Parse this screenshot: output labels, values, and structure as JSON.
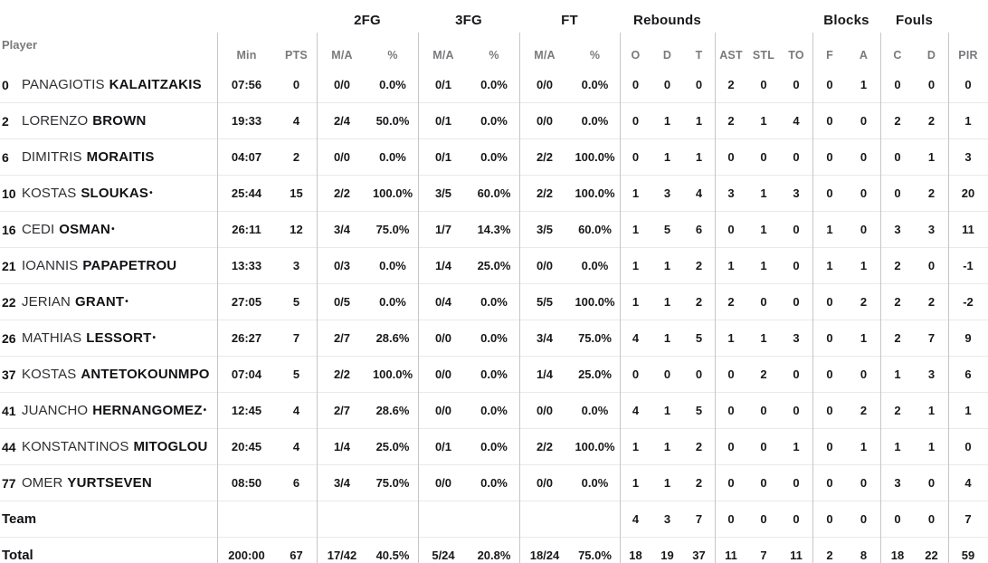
{
  "colors": {
    "background": "#ffffff",
    "text": "#18181c",
    "muted_header": "#7a7a7e",
    "row_line": "#e9e9ec",
    "column_line": "#c6c6ca"
  },
  "table": {
    "player_header": "Player",
    "group_headers": {
      "fg2": "2FG",
      "fg3": "3FG",
      "ft": "FT",
      "rebounds": "Rebounds",
      "blocks": "Blocks",
      "fouls": "Fouls"
    },
    "stat_headers": [
      "Min",
      "PTS",
      "M/A",
      "%",
      "M/A",
      "%",
      "M/A",
      "%",
      "O",
      "D",
      "T",
      "AST",
      "STL",
      "TO",
      "F",
      "A",
      "C",
      "D",
      "PIR"
    ],
    "starter_marker": "•",
    "rows": [
      {
        "kind": "player",
        "number": "0",
        "first": "PANAGIOTIS",
        "last": "KALAITZAKIS",
        "starter": false,
        "stats": [
          "07:56",
          "0",
          "0/0",
          "0.0%",
          "0/1",
          "0.0%",
          "0/0",
          "0.0%",
          "0",
          "0",
          "0",
          "2",
          "0",
          "0",
          "0",
          "1",
          "0",
          "0",
          "0"
        ]
      },
      {
        "kind": "player",
        "number": "2",
        "first": "LORENZO",
        "last": "BROWN",
        "starter": false,
        "stats": [
          "19:33",
          "4",
          "2/4",
          "50.0%",
          "0/1",
          "0.0%",
          "0/0",
          "0.0%",
          "0",
          "1",
          "1",
          "2",
          "1",
          "4",
          "0",
          "0",
          "2",
          "2",
          "1"
        ]
      },
      {
        "kind": "player",
        "number": "6",
        "first": "DIMITRIS",
        "last": "MORAITIS",
        "starter": false,
        "stats": [
          "04:07",
          "2",
          "0/0",
          "0.0%",
          "0/1",
          "0.0%",
          "2/2",
          "100.0%",
          "0",
          "1",
          "1",
          "0",
          "0",
          "0",
          "0",
          "0",
          "0",
          "1",
          "3"
        ]
      },
      {
        "kind": "player",
        "number": "10",
        "first": "KOSTAS",
        "last": "SLOUKAS",
        "starter": true,
        "stats": [
          "25:44",
          "15",
          "2/2",
          "100.0%",
          "3/5",
          "60.0%",
          "2/2",
          "100.0%",
          "1",
          "3",
          "4",
          "3",
          "1",
          "3",
          "0",
          "0",
          "0",
          "2",
          "20"
        ]
      },
      {
        "kind": "player",
        "number": "16",
        "first": "CEDI",
        "last": "OSMAN",
        "starter": true,
        "stats": [
          "26:11",
          "12",
          "3/4",
          "75.0%",
          "1/7",
          "14.3%",
          "3/5",
          "60.0%",
          "1",
          "5",
          "6",
          "0",
          "1",
          "0",
          "1",
          "0",
          "3",
          "3",
          "11"
        ]
      },
      {
        "kind": "player",
        "number": "21",
        "first": "IOANNIS",
        "last": "PAPAPETROU",
        "starter": false,
        "stats": [
          "13:33",
          "3",
          "0/3",
          "0.0%",
          "1/4",
          "25.0%",
          "0/0",
          "0.0%",
          "1",
          "1",
          "2",
          "1",
          "1",
          "0",
          "1",
          "1",
          "2",
          "0",
          "-1"
        ]
      },
      {
        "kind": "player",
        "number": "22",
        "first": "JERIAN",
        "last": "GRANT",
        "starter": true,
        "stats": [
          "27:05",
          "5",
          "0/5",
          "0.0%",
          "0/4",
          "0.0%",
          "5/5",
          "100.0%",
          "1",
          "1",
          "2",
          "2",
          "0",
          "0",
          "0",
          "2",
          "2",
          "2",
          "-2"
        ]
      },
      {
        "kind": "player",
        "number": "26",
        "first": "MATHIAS",
        "last": "LESSORT",
        "starter": true,
        "stats": [
          "26:27",
          "7",
          "2/7",
          "28.6%",
          "0/0",
          "0.0%",
          "3/4",
          "75.0%",
          "4",
          "1",
          "5",
          "1",
          "1",
          "3",
          "0",
          "1",
          "2",
          "7",
          "9"
        ]
      },
      {
        "kind": "player",
        "number": "37",
        "first": "KOSTAS",
        "last": "ANTETOKOUNMPO",
        "starter": false,
        "stats": [
          "07:04",
          "5",
          "2/2",
          "100.0%",
          "0/0",
          "0.0%",
          "1/4",
          "25.0%",
          "0",
          "0",
          "0",
          "0",
          "2",
          "0",
          "0",
          "0",
          "1",
          "3",
          "6"
        ]
      },
      {
        "kind": "player",
        "number": "41",
        "first": "JUANCHO",
        "last": "HERNANGOMEZ",
        "starter": true,
        "stats": [
          "12:45",
          "4",
          "2/7",
          "28.6%",
          "0/0",
          "0.0%",
          "0/0",
          "0.0%",
          "4",
          "1",
          "5",
          "0",
          "0",
          "0",
          "0",
          "2",
          "2",
          "1",
          "1"
        ]
      },
      {
        "kind": "player",
        "number": "44",
        "first": "KONSTANTINOS",
        "last": "MITOGLOU",
        "starter": false,
        "stats": [
          "20:45",
          "4",
          "1/4",
          "25.0%",
          "0/1",
          "0.0%",
          "2/2",
          "100.0%",
          "1",
          "1",
          "2",
          "0",
          "0",
          "1",
          "0",
          "1",
          "1",
          "1",
          "0"
        ]
      },
      {
        "kind": "player",
        "number": "77",
        "first": "OMER",
        "last": "YURTSEVEN",
        "starter": false,
        "stats": [
          "08:50",
          "6",
          "3/4",
          "75.0%",
          "0/0",
          "0.0%",
          "0/0",
          "0.0%",
          "1",
          "1",
          "2",
          "0",
          "0",
          "0",
          "0",
          "0",
          "3",
          "0",
          "4"
        ]
      },
      {
        "kind": "summary",
        "label": "Team",
        "stats": [
          "",
          "",
          "",
          "",
          "",
          "",
          "",
          "",
          "4",
          "3",
          "7",
          "0",
          "0",
          "0",
          "0",
          "0",
          "0",
          "0",
          "7"
        ]
      },
      {
        "kind": "summary",
        "label": "Total",
        "stats": [
          "200:00",
          "67",
          "17/42",
          "40.5%",
          "5/24",
          "20.8%",
          "18/24",
          "75.0%",
          "18",
          "19",
          "37",
          "11",
          "7",
          "11",
          "2",
          "8",
          "18",
          "22",
          "59"
        ]
      }
    ]
  }
}
